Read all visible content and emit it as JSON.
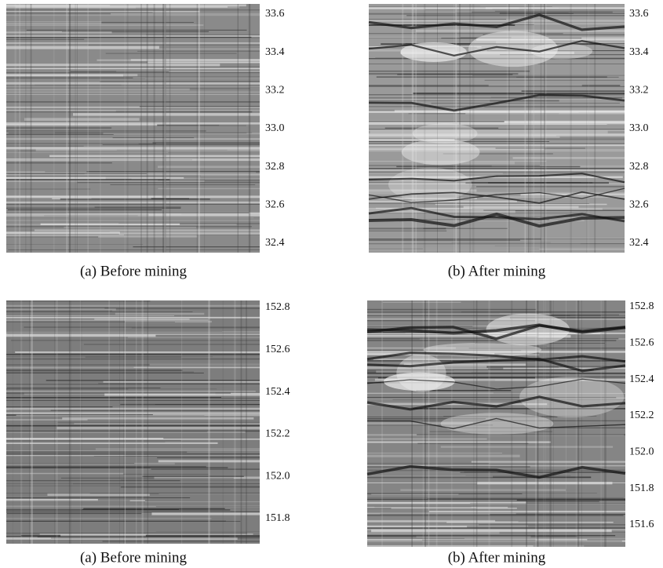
{
  "panels": [
    {
      "caption": "(a) Before mining",
      "ticks": [
        "33.6",
        "33.4",
        "33.2",
        "33.0",
        "32.8",
        "32.6",
        "32.4"
      ]
    },
    {
      "caption": "(b) After mining",
      "ticks": [
        "33.6",
        "33.4",
        "33.2",
        "33.0",
        "32.8",
        "32.6",
        "32.4"
      ]
    },
    {
      "caption": "(a) Before mining",
      "ticks": [
        "152.8",
        "152.6",
        "152.4",
        "152.2",
        "152.0",
        "151.8"
      ]
    },
    {
      "caption": "(b) After mining",
      "ticks": [
        "152.8",
        "152.6",
        "152.4",
        "152.2",
        "152.0",
        "151.8",
        "151.6"
      ]
    }
  ]
}
